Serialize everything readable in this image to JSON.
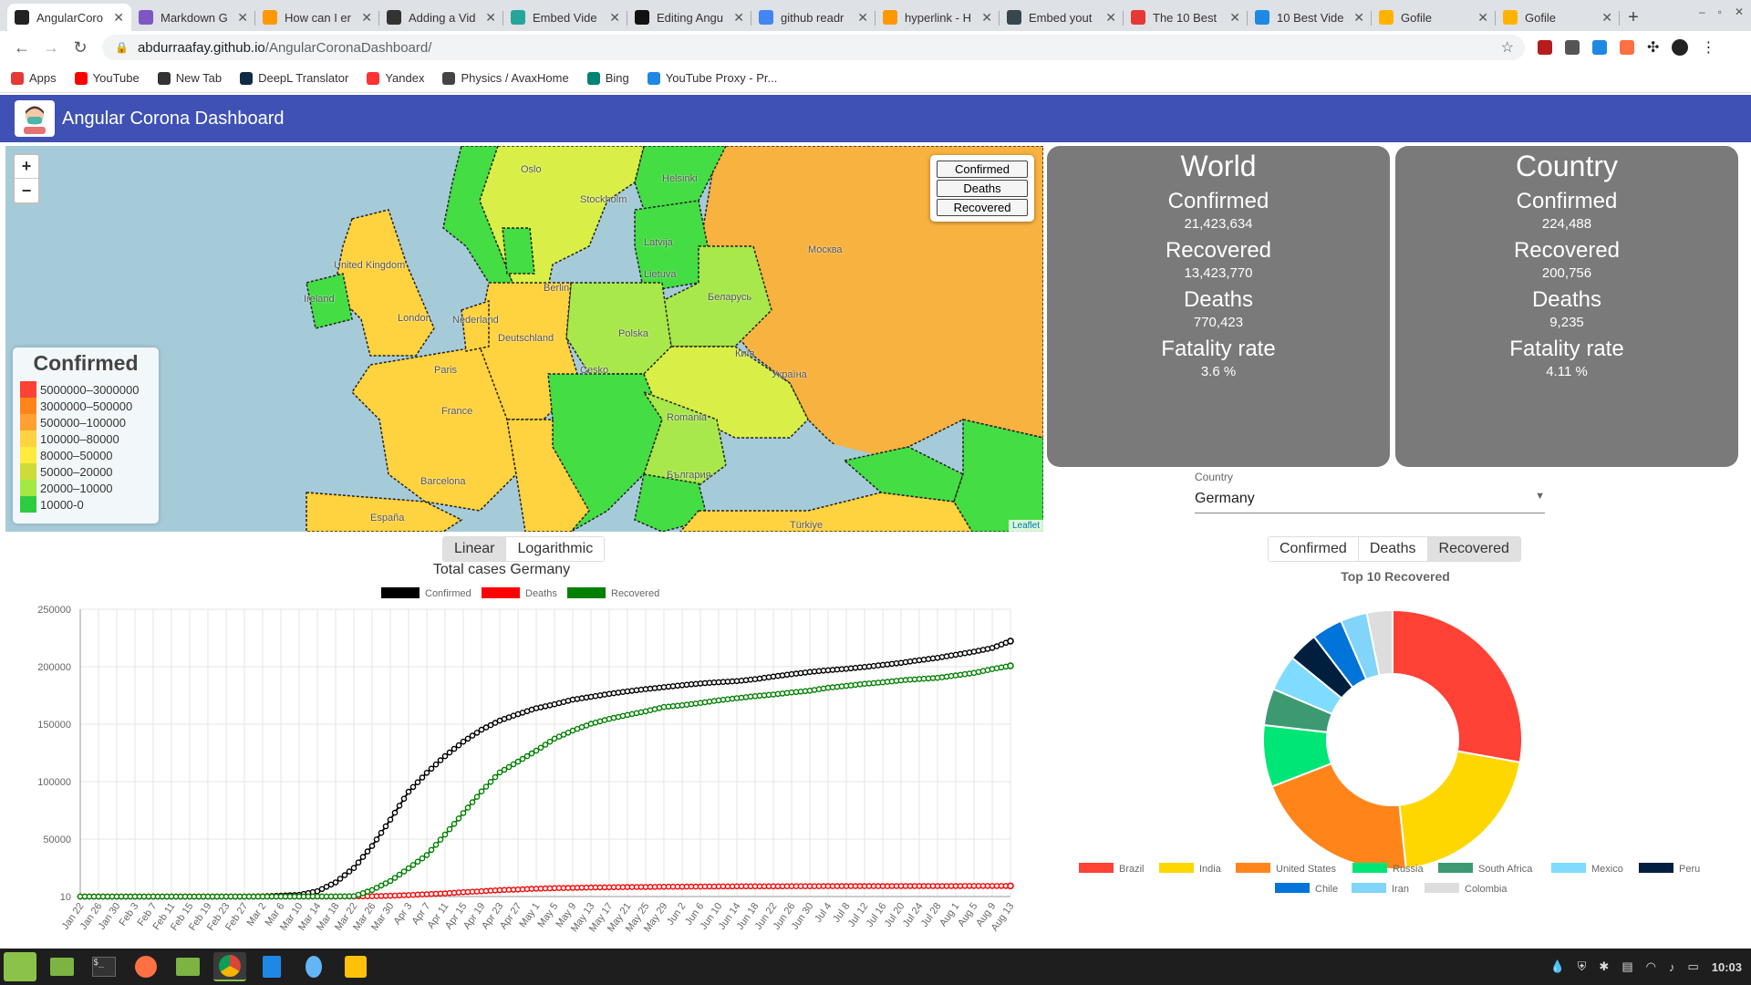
{
  "browser": {
    "tabs": [
      {
        "title": "AngularCoro",
        "color": "#222"
      },
      {
        "title": "Markdown G",
        "color": "#7e57c2"
      },
      {
        "title": "How can I er",
        "color": "#ff9800"
      },
      {
        "title": "Adding a Vid",
        "color": "#333"
      },
      {
        "title": "Embed Vide",
        "color": "#26a69a"
      },
      {
        "title": "Editing Angu",
        "color": "#111"
      },
      {
        "title": "github readr",
        "color": "#4285f4"
      },
      {
        "title": "hyperlink - H",
        "color": "#ff9800"
      },
      {
        "title": "Embed yout",
        "color": "#37474f"
      },
      {
        "title": "The 10 Best",
        "color": "#e53935"
      },
      {
        "title": "10 Best Vide",
        "color": "#1e88e5"
      },
      {
        "title": "Gofile",
        "color": "#ffb300"
      },
      {
        "title": "Gofile",
        "color": "#ffb300"
      }
    ],
    "url_host": "abdurraafay.github.io",
    "url_path": "/AngularCoronaDashboard/",
    "bookmarks": [
      {
        "label": "Apps",
        "color": "#e53935"
      },
      {
        "label": "YouTube",
        "color": "#ff0000"
      },
      {
        "label": "New Tab",
        "color": "#333"
      },
      {
        "label": "DeepL Translator",
        "color": "#0f2b46"
      },
      {
        "label": "Yandex",
        "color": "#ff3333"
      },
      {
        "label": "Physics / AvaxHome",
        "color": "#444"
      },
      {
        "label": "Bing",
        "color": "#008373"
      },
      {
        "label": "YouTube Proxy - Pr...",
        "color": "#1e88e5"
      }
    ]
  },
  "app": {
    "title": "Angular Corona Dashboard"
  },
  "map": {
    "layer_buttons": [
      "Confirmed",
      "Deaths",
      "Recovered"
    ],
    "legend_title": "Confirmed",
    "legend": [
      {
        "label": "5000000–3000000",
        "color": "#ff4136"
      },
      {
        "label": "3000000–500000",
        "color": "#ff851b"
      },
      {
        "label": "500000–100000",
        "color": "#ffa030"
      },
      {
        "label": "100000–80000",
        "color": "#ffd23f"
      },
      {
        "label": "80000–50000",
        "color": "#ffeb3b"
      },
      {
        "label": "50000–20000",
        "color": "#cddc39"
      },
      {
        "label": "20000–10000",
        "color": "#a4e843"
      },
      {
        "label": "10000-0",
        "color": "#2ecc40"
      }
    ],
    "labels": [
      "Oslo",
      "Stockholm",
      "Helsinki",
      "Latvija",
      "Lietuva",
      "Москва",
      "Беларусь",
      "Україна",
      "Polska",
      "Deutschland",
      "Česko",
      "France",
      "Paris",
      "España",
      "Barcelona",
      "Romania",
      "България",
      "Türkiye",
      "Київ",
      "United Kingdom",
      "Ireland",
      "London",
      "Nederland",
      "Berlin"
    ],
    "attribution": "Leaflet"
  },
  "world": {
    "title": "World",
    "confirmed_label": "Confirmed",
    "confirmed": "21,423,634",
    "recovered_label": "Recovered",
    "recovered": "13,423,770",
    "deaths_label": "Deaths",
    "deaths": "770,423",
    "fatality_label": "Fatality rate",
    "fatality": "3.6 %"
  },
  "country": {
    "title": "Country",
    "confirmed_label": "Confirmed",
    "confirmed": "224,488",
    "recovered_label": "Recovered",
    "recovered": "200,756",
    "deaths_label": "Deaths",
    "deaths": "9,235",
    "fatality_label": "Fatality rate",
    "fatality": "4.11 %"
  },
  "country_select": {
    "label": "Country",
    "value": "Germany"
  },
  "line_scale": {
    "options": [
      "Linear",
      "Logarithmic"
    ],
    "selected": "Linear"
  },
  "donut_metric": {
    "options": [
      "Confirmed",
      "Deaths",
      "Recovered"
    ],
    "selected": "Recovered"
  },
  "chart_data": [
    {
      "type": "line",
      "title": "Total cases Germany",
      "x": [
        "Jan 22",
        "Jan 26",
        "Jan 30",
        "Feb 3",
        "Feb 7",
        "Feb 11",
        "Feb 15",
        "Feb 19",
        "Feb 23",
        "Feb 27",
        "Mar 2",
        "Mar 6",
        "Mar 10",
        "Mar 14",
        "Mar 18",
        "Mar 22",
        "Mar 26",
        "Mar 30",
        "Apr 3",
        "Apr 7",
        "Apr 11",
        "Apr 15",
        "Apr 19",
        "Apr 23",
        "Apr 27",
        "May 1",
        "May 5",
        "May 9",
        "May 13",
        "May 17",
        "May 21",
        "May 25",
        "May 29",
        "Jun 2",
        "Jun 6",
        "Jun 10",
        "Jun 14",
        "Jun 18",
        "Jun 22",
        "Jun 26",
        "Jun 30",
        "Jul 4",
        "Jul 8",
        "Jul 12",
        "Jul 16",
        "Jul 20",
        "Jul 24",
        "Jul 28",
        "Aug 1",
        "Aug 5",
        "Aug 9",
        "Aug 13"
      ],
      "series": [
        {
          "name": "Confirmed",
          "color": "#000000",
          "values": [
            0,
            4,
            5,
            12,
            13,
            16,
            16,
            16,
            16,
            26,
            159,
            800,
            1457,
            4585,
            12327,
            24873,
            43938,
            66885,
            91159,
            107663,
            122171,
            134753,
            145184,
            153129,
            158758,
            163860,
            167300,
            171324,
            173772,
            176369,
            178570,
            180458,
            182196,
            183879,
            185416,
            186506,
            187423,
            189135,
            191449,
            193499,
            195392,
            196944,
            198178,
            199726,
            201574,
            203368,
            205623,
            207707,
            210402,
            213067,
            216327,
            222281
          ]
        },
        {
          "name": "Deaths",
          "color": "#ff0000",
          "values": [
            0,
            0,
            0,
            0,
            0,
            0,
            0,
            0,
            0,
            0,
            0,
            0,
            2,
            9,
            28,
            94,
            253,
            645,
            1275,
            2016,
            2736,
            3804,
            4586,
            5575,
            6126,
            6831,
            7266,
            7569,
            7861,
            8027,
            8270,
            8349,
            8511,
            8602,
            8685,
            8772,
            8851,
            8887,
            8895,
            8957,
            8994,
            9020,
            9063,
            9071,
            9084,
            9094,
            9111,
            9128,
            9154,
            9181,
            9201,
            9231
          ]
        },
        {
          "name": "Recovered",
          "color": "#008000",
          "values": [
            0,
            0,
            0,
            0,
            0,
            0,
            9,
            14,
            14,
            16,
            16,
            16,
            25,
            46,
            105,
            266,
            5673,
            13500,
            24575,
            36081,
            53913,
            72600,
            91500,
            108000,
            117400,
            126900,
            137400,
            144400,
            150300,
            154600,
            158000,
            161200,
            164900,
            166400,
            168500,
            170700,
            172600,
            174400,
            175800,
            177600,
            179100,
            181700,
            183300,
            185100,
            186400,
            188100,
            189300,
            190300,
            192400,
            194600,
            197900,
            200756
          ]
        }
      ],
      "ylim": [
        10,
        250000
      ],
      "yticks": [
        "250000",
        "200000",
        "150000",
        "100000",
        "50000",
        "10"
      ],
      "legend": "top"
    },
    {
      "type": "pie",
      "title": "Top 10 Recovered",
      "categories": [
        "Brazil",
        "India",
        "United States",
        "Russia",
        "South Africa",
        "Mexico",
        "Peru",
        "Chile",
        "Iran",
        "Colombia"
      ],
      "values": [
        2600000,
        1920000,
        1940000,
        720000,
        430000,
        420000,
        350000,
        360000,
        310000,
        300000
      ],
      "colors": [
        "#ff4136",
        "#ffd700",
        "#ff851b",
        "#00e676",
        "#3d9970",
        "#7fdbff",
        "#001f3f",
        "#0074d9",
        "#81d4fa",
        "#dddddd"
      ],
      "legend": "bottom"
    }
  ],
  "taskbar": {
    "time": "10:03"
  }
}
